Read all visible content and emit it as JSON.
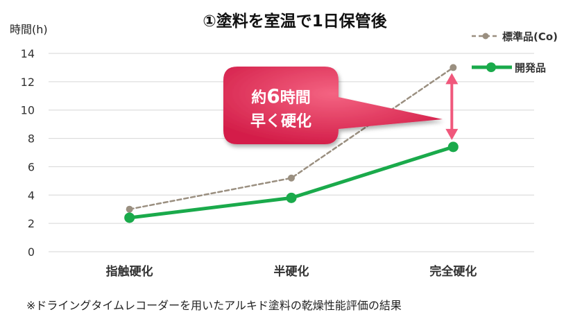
{
  "chart_data": {
    "type": "line",
    "title": "①塗料を室温で1日保管後",
    "ylabel": "時間(h)",
    "xlabel": "",
    "ylim": [
      0,
      14
    ],
    "yticks": [
      0,
      2,
      4,
      6,
      8,
      10,
      12,
      14
    ],
    "grid": true,
    "legend_position": "top-right",
    "categories": [
      "指触硬化",
      "半硬化",
      "完全硬化"
    ],
    "series": [
      {
        "name": "標準品(Co)",
        "values": [
          3.0,
          5.2,
          13.0
        ],
        "color": "#9a8f80",
        "style": "dashed"
      },
      {
        "name": "開発品",
        "values": [
          2.4,
          3.8,
          7.4
        ],
        "color": "#1aaa4b",
        "style": "solid"
      }
    ],
    "annotation": {
      "line1_prefix": "約",
      "line1_num": "6",
      "line1_suffix": "時間",
      "line2": "早く硬化",
      "color": "#e8365f",
      "arrow_color": "#f0587c"
    }
  },
  "footnote": "※ドライングタイムレコーダーを用いたアルキド塗料の乾燥性能評価の結果"
}
